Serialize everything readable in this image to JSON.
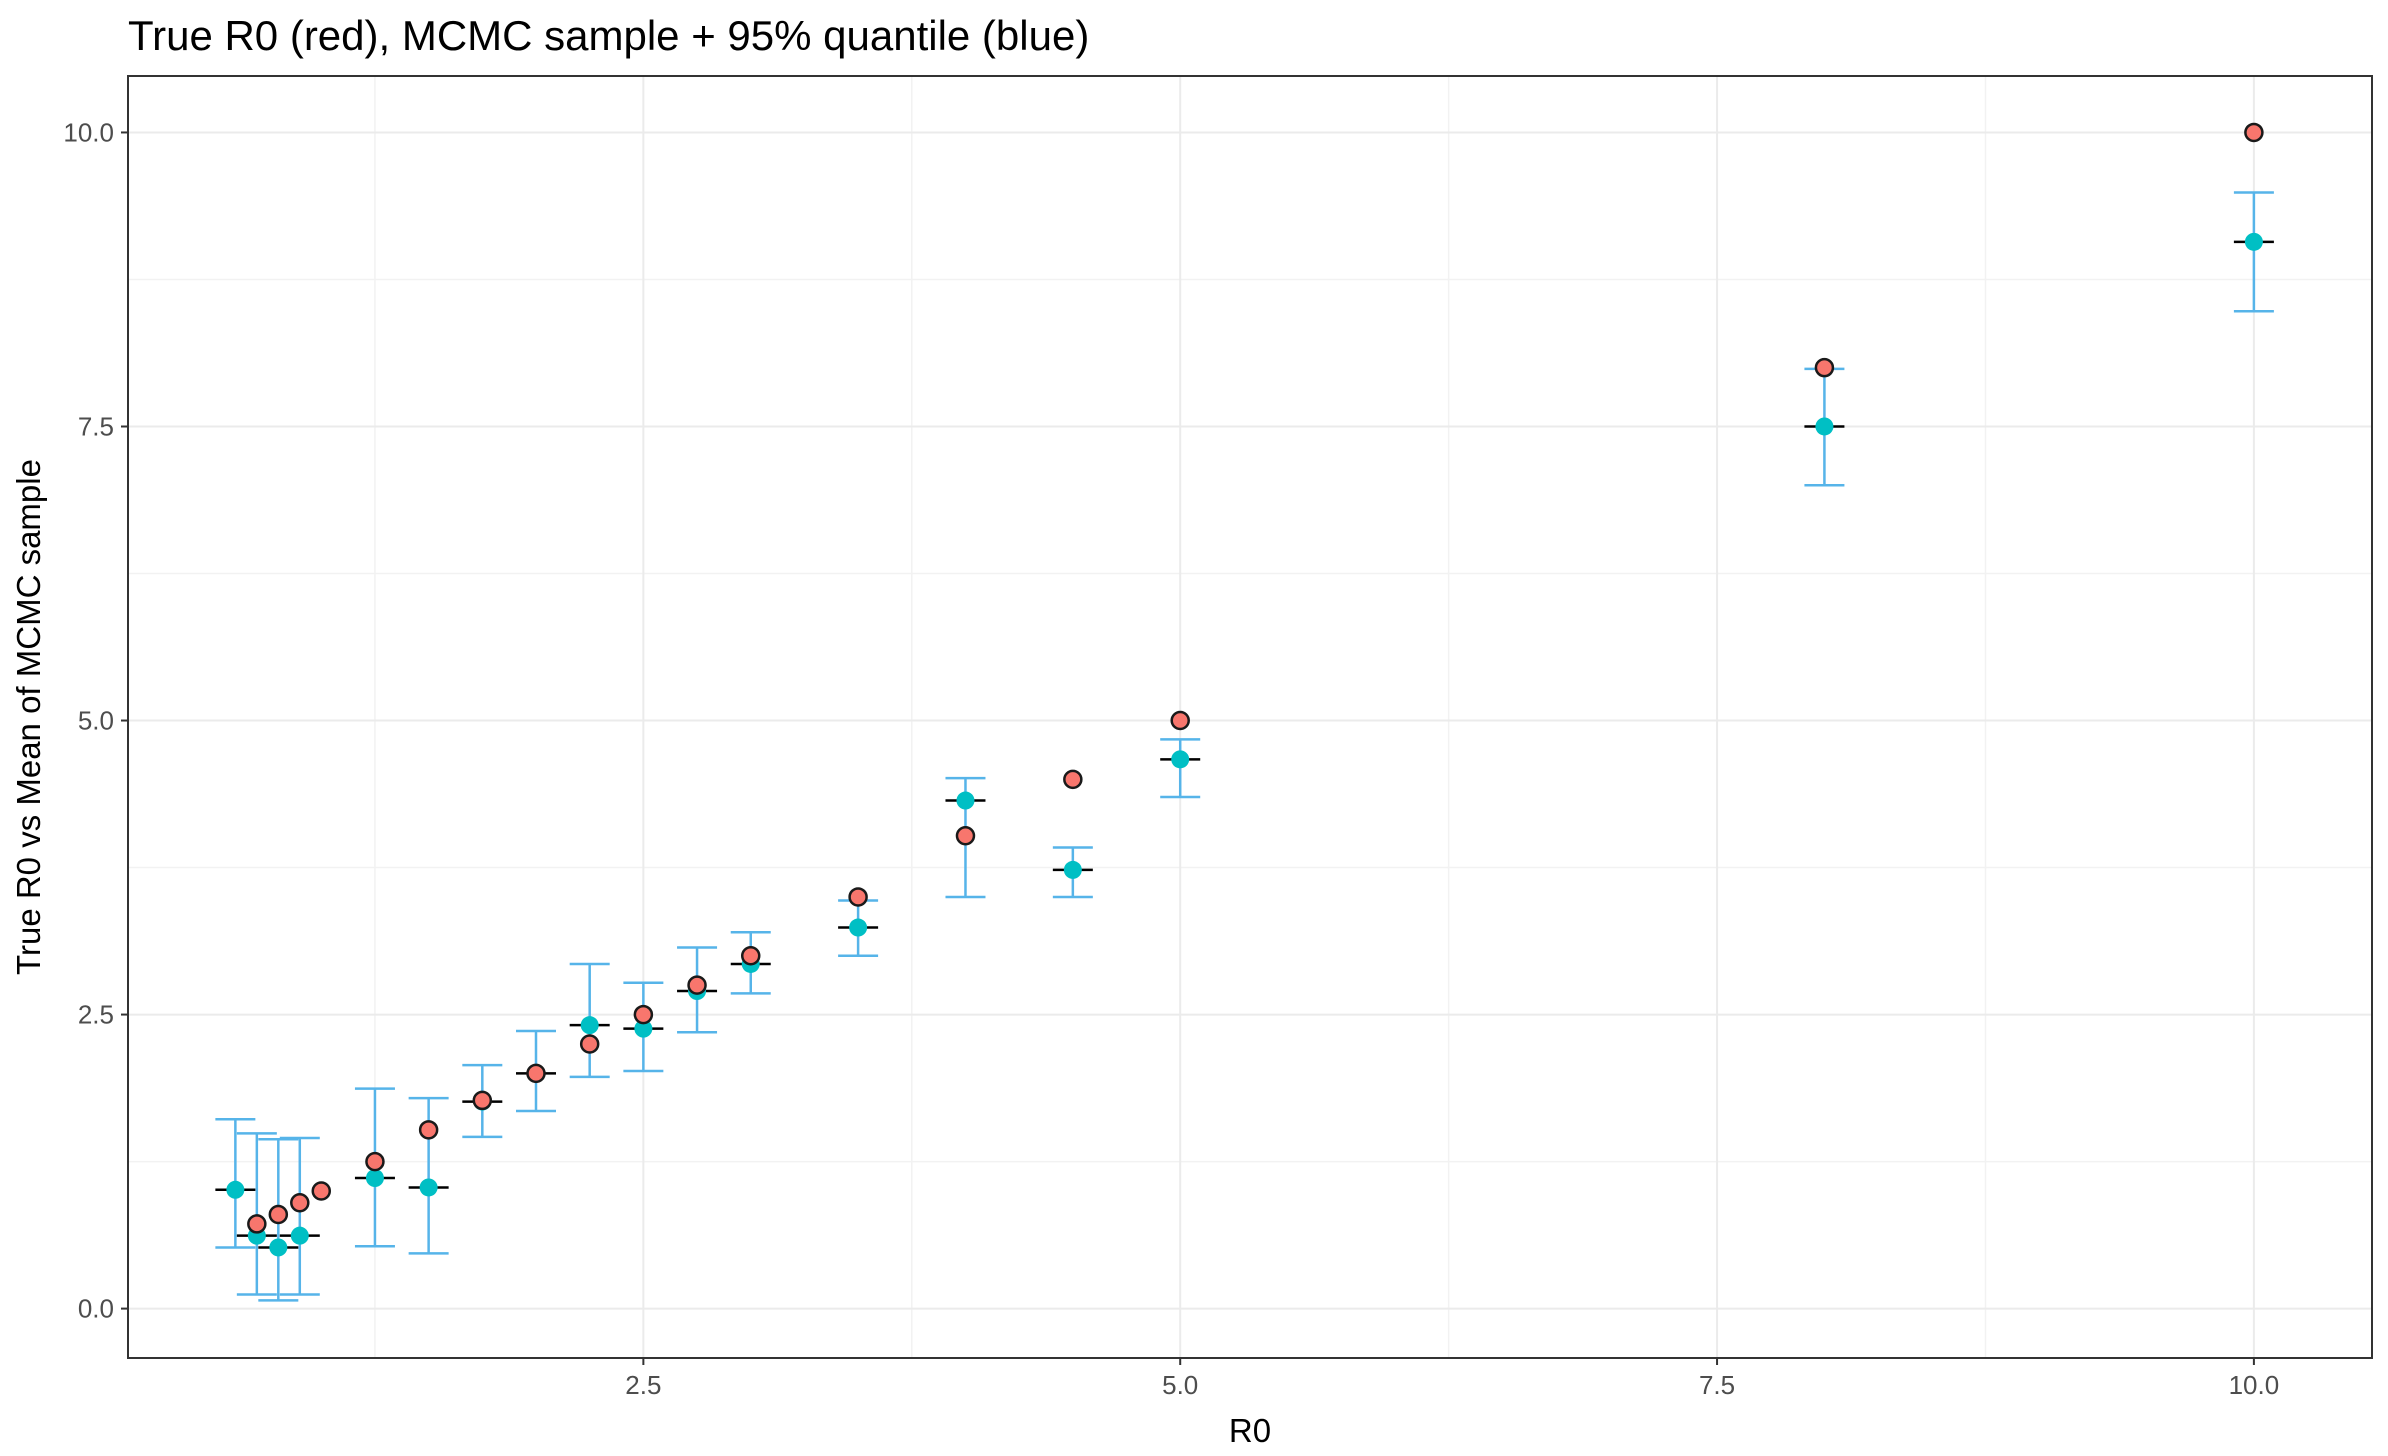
{
  "chart_data": {
    "type": "scatter",
    "title": "True R0 (red), MCMC sample + 95% quantile (blue)",
    "xlabel": "R0",
    "ylabel": "True R0 vs Mean of MCMC sample",
    "xlim": [
      0.1,
      10.55
    ],
    "ylim": [
      -0.42,
      10.48
    ],
    "x_ticks": [
      2.5,
      5.0,
      7.5,
      10.0
    ],
    "x_tick_labels": [
      "2.5",
      "5.0",
      "7.5",
      "10.0"
    ],
    "y_ticks": [
      0.0,
      2.5,
      5.0,
      7.5,
      10.0
    ],
    "y_tick_labels": [
      "0.0",
      "2.5",
      "5.0",
      "7.5",
      "10.0"
    ],
    "grid": true,
    "colors": {
      "true_point": "#f8766d",
      "mcmc_point": "#00bfc4",
      "error_bar": "#56b4e9",
      "mean_tick": "#000000"
    },
    "series": [
      {
        "x": [
          0.7,
          0.8,
          0.9,
          1.0,
          1.25,
          1.5,
          1.75,
          2.0,
          2.25,
          2.5,
          2.75,
          3.0,
          3.5,
          4.0,
          4.5,
          5.0,
          8.0,
          10.0
        ],
        "values": [
          0.72,
          0.8,
          0.9,
          1.0,
          1.25,
          1.52,
          1.77,
          2.0,
          2.25,
          2.5,
          2.75,
          3.0,
          3.5,
          4.02,
          4.5,
          5.0,
          8.0,
          10.0
        ]
      },
      {
        "x": [
          0.6,
          0.7,
          0.8,
          0.9,
          1.25,
          1.5,
          1.75,
          2.0,
          2.25,
          2.5,
          2.75,
          3.0,
          3.5,
          4.0,
          4.5,
          5.0,
          8.0,
          10.0
        ],
        "values": [
          1.01,
          0.62,
          0.52,
          0.62,
          1.11,
          1.03,
          1.76,
          2.0,
          2.41,
          2.38,
          2.7,
          2.93,
          3.24,
          4.32,
          3.73,
          4.67,
          7.5,
          9.07
        ],
        "lower": [
          0.52,
          0.12,
          0.07,
          0.12,
          0.53,
          0.47,
          1.46,
          1.68,
          1.97,
          2.02,
          2.35,
          2.68,
          3.0,
          3.5,
          3.5,
          4.35,
          7.0,
          8.48
        ],
        "upper": [
          1.61,
          1.49,
          1.44,
          1.45,
          1.87,
          1.79,
          2.07,
          2.36,
          2.93,
          2.77,
          3.07,
          3.2,
          3.47,
          4.51,
          3.92,
          4.84,
          7.99,
          9.49
        ]
      }
    ]
  }
}
